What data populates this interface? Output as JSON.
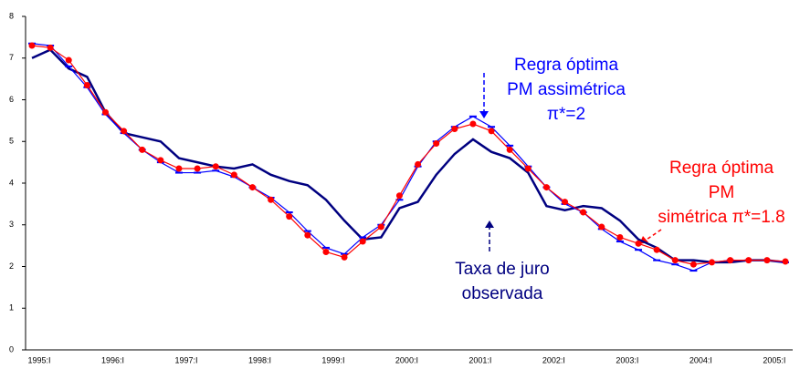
{
  "chart_data": {
    "type": "line",
    "categories": [
      "1995:I",
      null,
      null,
      null,
      "1996:I",
      null,
      null,
      null,
      "1997:I",
      null,
      null,
      null,
      "1998:I",
      null,
      null,
      null,
      "1999:I",
      null,
      null,
      null,
      "2000:I",
      null,
      null,
      null,
      "2001:I",
      null,
      null,
      null,
      "2002:I",
      null,
      null,
      null,
      "2003:I",
      null,
      null,
      null,
      "2004:I",
      null,
      null,
      null,
      "2005:I",
      null
    ],
    "series": [
      {
        "color": "#000080",
        "marker": "none",
        "values": [
          7.0,
          7.2,
          6.75,
          6.55,
          5.7,
          5.2,
          5.1,
          5.0,
          4.6,
          4.5,
          4.4,
          4.35,
          4.45,
          4.2,
          4.05,
          3.95,
          3.6,
          3.1,
          2.65,
          2.7,
          3.4,
          3.55,
          4.2,
          4.7,
          5.05,
          4.75,
          4.6,
          4.25,
          3.45,
          3.35,
          3.45,
          3.4,
          3.1,
          2.65,
          2.45,
          2.15,
          2.15,
          2.1,
          2.1,
          2.15,
          2.15,
          2.1
        ]
      },
      {
        "color": "#0000ff",
        "marker": "dash",
        "values": [
          7.35,
          7.3,
          6.8,
          6.3,
          5.65,
          5.2,
          4.8,
          4.5,
          4.25,
          4.25,
          4.3,
          4.15,
          3.9,
          3.65,
          3.3,
          2.85,
          2.45,
          2.3,
          2.7,
          3.0,
          3.6,
          4.4,
          5.0,
          5.35,
          5.6,
          5.35,
          4.9,
          4.4,
          3.9,
          3.5,
          3.3,
          2.9,
          2.6,
          2.4,
          2.15,
          2.05,
          1.9,
          2.1,
          2.15,
          2.15,
          2.15,
          2.1
        ]
      },
      {
        "color": "#ff0000",
        "marker": "circle",
        "values": [
          7.3,
          7.25,
          6.95,
          6.35,
          5.7,
          5.25,
          4.8,
          4.55,
          4.35,
          4.35,
          4.4,
          4.2,
          3.9,
          3.6,
          3.2,
          2.75,
          2.35,
          2.22,
          2.6,
          2.95,
          3.7,
          4.45,
          4.95,
          5.3,
          5.42,
          5.25,
          4.8,
          4.35,
          3.9,
          3.55,
          3.3,
          2.95,
          2.7,
          2.55,
          2.4,
          2.15,
          2.05,
          2.1,
          2.15,
          2.15,
          2.15,
          2.12
        ]
      }
    ],
    "ylim": [
      0,
      8
    ],
    "yticks": [
      0,
      1,
      2,
      3,
      4,
      5,
      6,
      7,
      8
    ],
    "annotations": [
      {
        "lines": [
          "Regra óptima",
          "PM assimétrica",
          "π*=2"
        ],
        "color": "#0000ff"
      },
      {
        "lines": [
          "Taxa de juro",
          "observada"
        ],
        "color": "#000080"
      },
      {
        "lines": [
          "Regra óptima",
          "PM",
          "simétrica π*=1.8"
        ],
        "color": "#ff0000"
      }
    ]
  }
}
